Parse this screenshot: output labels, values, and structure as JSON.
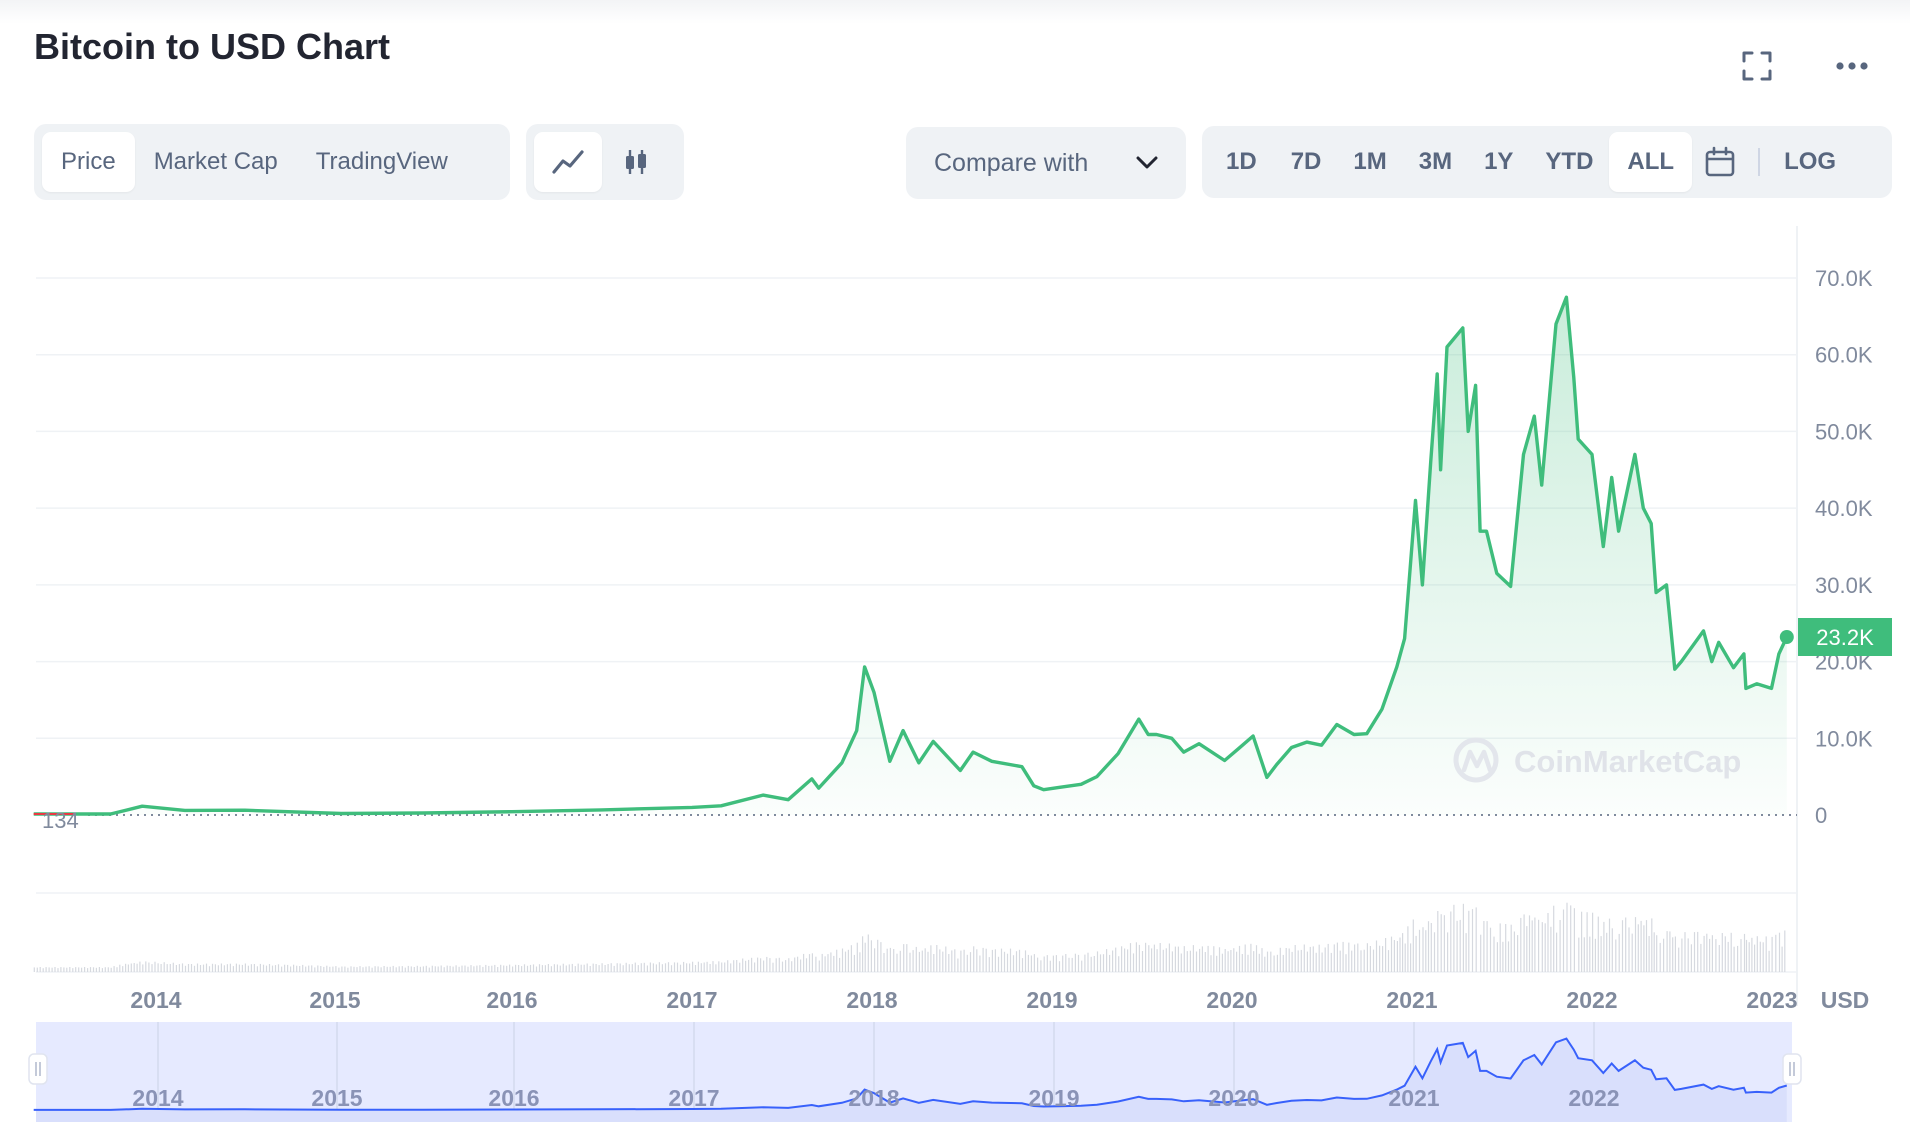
{
  "header": {
    "title": "Bitcoin to USD Chart"
  },
  "icons": {
    "fullscreen": "fullscreen-icon",
    "more": "more-icon",
    "line": "line-chart-icon",
    "candle": "candlestick-icon",
    "calendar": "calendar-icon",
    "chevron": "chevron-down-icon"
  },
  "tabs": [
    {
      "label": "Price",
      "active": true
    },
    {
      "label": "Market Cap",
      "active": false
    },
    {
      "label": "TradingView",
      "active": false
    }
  ],
  "compare": {
    "label": "Compare with"
  },
  "ranges": [
    {
      "label": "1D",
      "active": false
    },
    {
      "label": "7D",
      "active": false
    },
    {
      "label": "1M",
      "active": false
    },
    {
      "label": "3M",
      "active": false
    },
    {
      "label": "1Y",
      "active": false
    },
    {
      "label": "YTD",
      "active": false
    },
    {
      "label": "ALL",
      "active": true
    }
  ],
  "log_label": "LOG",
  "colors": {
    "price_line": "#3fbd7c",
    "navigator_line": "#3861fb",
    "navigator_fill": "#e6eaff",
    "text_muted": "#58667e"
  },
  "watermark": "CoinMarketCap",
  "chart_data": {
    "type": "area",
    "title": "Bitcoin to USD Chart",
    "currency_label": "USD",
    "y_ticks": [
      "0",
      "10.0K",
      "20.0K",
      "30.0K",
      "40.0K",
      "50.0K",
      "60.0K",
      "70.0K"
    ],
    "ylim": [
      0,
      70000
    ],
    "x_ticks": [
      "2014",
      "2015",
      "2016",
      "2017",
      "2018",
      "2019",
      "2020",
      "2021",
      "2022",
      "2023"
    ],
    "xlim": [
      "2013-04-28",
      "2023-02-01"
    ],
    "start_value_label": "134",
    "last_value_label": "23.2K",
    "last_value": 23200,
    "grid": true,
    "series": [
      {
        "values_x": [
          "2013-04-28",
          "2013-10-01",
          "2013-12-04",
          "2014-03-01",
          "2014-07-01",
          "2015-01-14",
          "2015-07-01",
          "2016-01-01",
          "2016-07-01",
          "2017-01-01",
          "2017-03-01",
          "2017-05-25",
          "2017-07-15",
          "2017-09-01",
          "2017-09-15",
          "2017-11-01",
          "2017-12-01",
          "2017-12-17",
          "2018-01-05",
          "2018-02-06",
          "2018-03-05",
          "2018-04-06",
          "2018-05-05",
          "2018-06-29",
          "2018-07-25",
          "2018-09-01",
          "2018-11-01",
          "2018-11-25",
          "2018-12-15",
          "2019-01-15",
          "2019-03-01",
          "2019-04-02",
          "2019-05-15",
          "2019-06-26",
          "2019-07-15",
          "2019-08-01",
          "2019-09-01",
          "2019-09-25",
          "2019-10-26",
          "2019-12-17",
          "2020-01-15",
          "2020-02-13",
          "2020-03-12",
          "2020-04-01",
          "2020-05-01",
          "2020-06-01",
          "2020-07-01",
          "2020-08-01",
          "2020-09-05",
          "2020-10-01",
          "2020-11-01",
          "2020-12-01",
          "2020-12-17",
          "2021-01-08",
          "2021-01-22",
          "2021-02-08",
          "2021-02-21",
          "2021-02-28",
          "2021-03-13",
          "2021-04-14",
          "2021-04-25",
          "2021-05-10",
          "2021-05-19",
          "2021-06-01",
          "2021-06-22",
          "2021-07-20",
          "2021-08-15",
          "2021-09-06",
          "2021-09-21",
          "2021-10-20",
          "2021-11-10",
          "2021-11-25",
          "2021-12-04",
          "2022-01-01",
          "2022-01-24",
          "2022-02-10",
          "2022-02-24",
          "2022-03-29",
          "2022-04-15",
          "2022-05-01",
          "2022-05-11",
          "2022-06-01",
          "2022-06-18",
          "2022-07-01",
          "2022-08-15",
          "2022-09-01",
          "2022-09-15",
          "2022-10-15",
          "2022-11-05",
          "2022-11-09",
          "2022-12-01",
          "2022-12-31",
          "2023-01-15",
          "2023-01-31"
        ],
        "values_y": [
          134,
          130,
          1150,
          600,
          620,
          200,
          260,
          430,
          670,
          990,
          1200,
          2600,
          2000,
          4700,
          3500,
          6800,
          11000,
          19300,
          16000,
          7000,
          11000,
          6800,
          9600,
          5800,
          8200,
          7000,
          6300,
          3800,
          3300,
          3600,
          4000,
          5000,
          8000,
          12500,
          10500,
          10500,
          10000,
          8200,
          9300,
          7100,
          8700,
          10300,
          4900,
          6600,
          8800,
          9500,
          9100,
          11800,
          10500,
          10600,
          13800,
          19300,
          23000,
          41000,
          30000,
          46000,
          57500,
          45000,
          61000,
          63500,
          50000,
          56000,
          37000,
          37000,
          31500,
          29800,
          47000,
          52000,
          43000,
          64000,
          67500,
          57000,
          49000,
          47000,
          35000,
          44000,
          37000,
          47000,
          40000,
          38000,
          29000,
          30000,
          19000,
          20000,
          24000,
          20000,
          22500,
          19200,
          21000,
          16500,
          17100,
          16500,
          21000,
          23200
        ],
        "name": ""
      }
    ],
    "volume_note": "volume bars shown below price"
  }
}
